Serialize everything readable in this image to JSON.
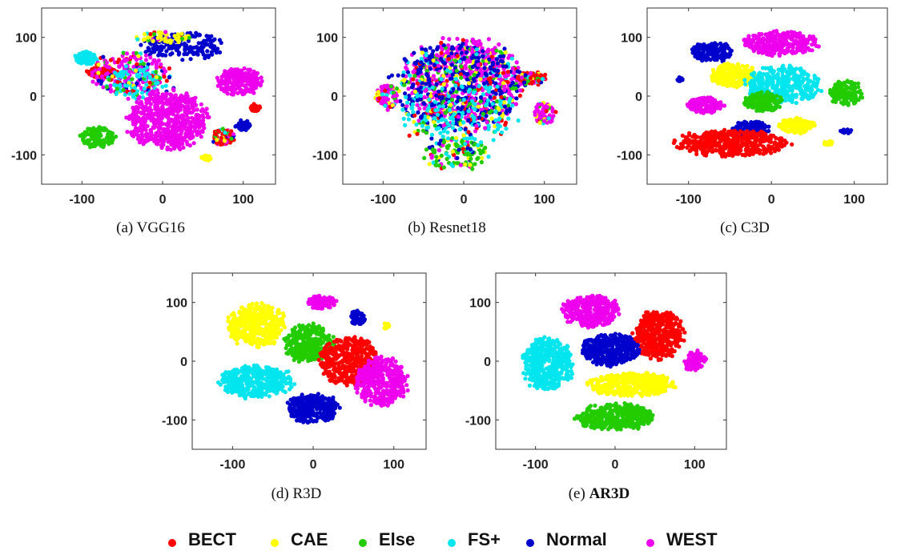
{
  "colors": {
    "BECT": "#ff0000",
    "CAE": "#ffff00",
    "Else": "#22cc00",
    "FS+": "#00e5ee",
    "Normal": "#0000cc",
    "WEST": "#ee00ee"
  },
  "legend": [
    "BECT",
    "CAE",
    "Else",
    "FS+",
    "Normal",
    "WEST"
  ],
  "chart_data": [
    {
      "type": "scatter",
      "title": "VGG16",
      "caption_prefix": "(a)",
      "caption_bold": false,
      "xlim": [
        -150,
        140
      ],
      "ylim": [
        -150,
        150
      ],
      "xticks": [
        -100,
        0,
        100
      ],
      "yticks": [
        -100,
        0,
        100
      ],
      "grid": false,
      "clusters": [
        {
          "class": "FS+",
          "cx": -95,
          "cy": 65,
          "rx": 15,
          "ry": 12,
          "n": 90
        },
        {
          "class": "BECT",
          "cx": -75,
          "cy": 40,
          "rx": 22,
          "ry": 10,
          "n": 100
        },
        {
          "class": "Normal",
          "cx": 25,
          "cy": 85,
          "rx": 55,
          "ry": 25,
          "n": 180
        },
        {
          "class": "WEST",
          "cx": -40,
          "cy": 40,
          "rx": 55,
          "ry": 40,
          "n": 200,
          "mixed": true
        },
        {
          "class": "FS+",
          "cx": -30,
          "cy": 20,
          "rx": 45,
          "ry": 30,
          "n": 120,
          "mixed": true
        },
        {
          "class": "WEST",
          "cx": 5,
          "cy": -40,
          "rx": 55,
          "ry": 55,
          "n": 600
        },
        {
          "class": "Else",
          "cx": -80,
          "cy": -70,
          "rx": 25,
          "ry": 20,
          "n": 140
        },
        {
          "class": "WEST",
          "cx": 95,
          "cy": 25,
          "rx": 30,
          "ry": 25,
          "n": 220
        },
        {
          "class": "BECT",
          "cx": 75,
          "cy": -70,
          "rx": 15,
          "ry": 15,
          "n": 90,
          "mixed": true
        },
        {
          "class": "BECT",
          "cx": 115,
          "cy": -20,
          "rx": 7,
          "ry": 7,
          "n": 30
        },
        {
          "class": "CAE",
          "cx": 55,
          "cy": -105,
          "rx": 7,
          "ry": 5,
          "n": 25
        },
        {
          "class": "Normal",
          "cx": 100,
          "cy": -50,
          "rx": 10,
          "ry": 10,
          "n": 40
        },
        {
          "class": "CAE",
          "cx": 0,
          "cy": 100,
          "rx": 40,
          "ry": 10,
          "n": 60,
          "mixed": true
        }
      ]
    },
    {
      "type": "scatter",
      "title": "Resnet18",
      "caption_prefix": "(b)",
      "caption_bold": false,
      "xlim": [
        -150,
        140
      ],
      "ylim": [
        -150,
        150
      ],
      "xticks": [
        -100,
        0,
        100
      ],
      "yticks": [
        -100,
        0,
        100
      ],
      "grid": false,
      "clusters": [
        {
          "class": "WEST",
          "cx": 0,
          "cy": 25,
          "rx": 85,
          "ry": 80,
          "n": 700,
          "mixed": true
        },
        {
          "class": "Normal",
          "cx": -10,
          "cy": 10,
          "rx": 90,
          "ry": 90,
          "n": 420,
          "mixed": true
        },
        {
          "class": "WEST",
          "cx": -95,
          "cy": 0,
          "rx": 15,
          "ry": 25,
          "n": 90,
          "mixed": true
        },
        {
          "class": "Else",
          "cx": -10,
          "cy": -100,
          "rx": 45,
          "ry": 30,
          "n": 120,
          "mixed": true
        },
        {
          "class": "BECT",
          "cx": 85,
          "cy": 30,
          "rx": 20,
          "ry": 12,
          "n": 70,
          "mixed": true
        },
        {
          "class": "WEST",
          "cx": 100,
          "cy": -30,
          "rx": 15,
          "ry": 20,
          "n": 70,
          "mixed": true
        },
        {
          "class": "FS+",
          "cx": -5,
          "cy": -30,
          "rx": 80,
          "ry": 70,
          "n": 200,
          "mixed": true
        }
      ]
    },
    {
      "type": "scatter",
      "title": "C3D",
      "caption_prefix": "(c)",
      "caption_bold": false,
      "xlim": [
        -150,
        140
      ],
      "ylim": [
        -150,
        150
      ],
      "xticks": [
        -100,
        0,
        100
      ],
      "yticks": [
        -100,
        0,
        100
      ],
      "grid": false,
      "clusters": [
        {
          "class": "Normal",
          "cx": -70,
          "cy": 75,
          "rx": 30,
          "ry": 18,
          "n": 160
        },
        {
          "class": "WEST",
          "cx": 10,
          "cy": 90,
          "rx": 50,
          "ry": 22,
          "n": 300
        },
        {
          "class": "CAE",
          "cx": -45,
          "cy": 35,
          "rx": 30,
          "ry": 22,
          "n": 220
        },
        {
          "class": "FS+",
          "cx": 15,
          "cy": 20,
          "rx": 50,
          "ry": 35,
          "n": 380
        },
        {
          "class": "WEST",
          "cx": -80,
          "cy": -15,
          "rx": 25,
          "ry": 15,
          "n": 150
        },
        {
          "class": "Else",
          "cx": -10,
          "cy": -10,
          "rx": 25,
          "ry": 18,
          "n": 160
        },
        {
          "class": "Else",
          "cx": 90,
          "cy": 5,
          "rx": 22,
          "ry": 25,
          "n": 150
        },
        {
          "class": "Normal",
          "cx": -25,
          "cy": -55,
          "rx": 25,
          "ry": 15,
          "n": 130
        },
        {
          "class": "CAE",
          "cx": 30,
          "cy": -50,
          "rx": 25,
          "ry": 15,
          "n": 130
        },
        {
          "class": "BECT",
          "cx": -45,
          "cy": -80,
          "rx": 75,
          "ry": 25,
          "n": 450
        },
        {
          "class": "Normal",
          "cx": -110,
          "cy": 30,
          "rx": 5,
          "ry": 5,
          "n": 15
        },
        {
          "class": "Normal",
          "cx": 90,
          "cy": -60,
          "rx": 8,
          "ry": 4,
          "n": 15
        },
        {
          "class": "CAE",
          "cx": 70,
          "cy": -80,
          "rx": 8,
          "ry": 5,
          "n": 15
        }
      ]
    },
    {
      "type": "scatter",
      "title": "R3D",
      "caption_prefix": "(d)",
      "caption_bold": false,
      "xlim": [
        -150,
        140
      ],
      "ylim": [
        -150,
        150
      ],
      "xticks": [
        -100,
        0,
        100
      ],
      "yticks": [
        -100,
        0,
        100
      ],
      "grid": false,
      "clusters": [
        {
          "class": "CAE",
          "cx": -70,
          "cy": 60,
          "rx": 40,
          "ry": 40,
          "n": 420
        },
        {
          "class": "WEST",
          "cx": 10,
          "cy": 100,
          "rx": 20,
          "ry": 12,
          "n": 90
        },
        {
          "class": "Normal",
          "cx": 55,
          "cy": 75,
          "rx": 10,
          "ry": 15,
          "n": 60
        },
        {
          "class": "CAE",
          "cx": 90,
          "cy": 60,
          "rx": 5,
          "ry": 5,
          "n": 12
        },
        {
          "class": "Else",
          "cx": -5,
          "cy": 30,
          "rx": 35,
          "ry": 35,
          "n": 350
        },
        {
          "class": "BECT",
          "cx": 45,
          "cy": 0,
          "rx": 40,
          "ry": 45,
          "n": 450
        },
        {
          "class": "FS+",
          "cx": -70,
          "cy": -35,
          "rx": 50,
          "ry": 30,
          "n": 420
        },
        {
          "class": "WEST",
          "cx": 85,
          "cy": -35,
          "rx": 35,
          "ry": 45,
          "n": 380
        },
        {
          "class": "Normal",
          "cx": 0,
          "cy": -80,
          "rx": 35,
          "ry": 28,
          "n": 330
        }
      ]
    },
    {
      "type": "scatter",
      "title": "AR3D",
      "caption_prefix": "(e)",
      "caption_bold": true,
      "xlim": [
        -150,
        140
      ],
      "ylim": [
        -150,
        150
      ],
      "xticks": [
        -100,
        0,
        100
      ],
      "yticks": [
        -100,
        0,
        100
      ],
      "grid": false,
      "clusters": [
        {
          "class": "WEST",
          "cx": -30,
          "cy": 85,
          "rx": 40,
          "ry": 30,
          "n": 360
        },
        {
          "class": "BECT",
          "cx": 55,
          "cy": 45,
          "rx": 35,
          "ry": 45,
          "n": 430
        },
        {
          "class": "Normal",
          "cx": -5,
          "cy": 20,
          "rx": 40,
          "ry": 30,
          "n": 380
        },
        {
          "class": "FS+",
          "cx": -85,
          "cy": -5,
          "rx": 35,
          "ry": 50,
          "n": 440
        },
        {
          "class": "WEST",
          "cx": 100,
          "cy": 0,
          "rx": 15,
          "ry": 20,
          "n": 90
        },
        {
          "class": "CAE",
          "cx": 20,
          "cy": -40,
          "rx": 60,
          "ry": 22,
          "n": 420
        },
        {
          "class": "Else",
          "cx": 0,
          "cy": -95,
          "rx": 55,
          "ry": 25,
          "n": 400
        }
      ]
    }
  ]
}
